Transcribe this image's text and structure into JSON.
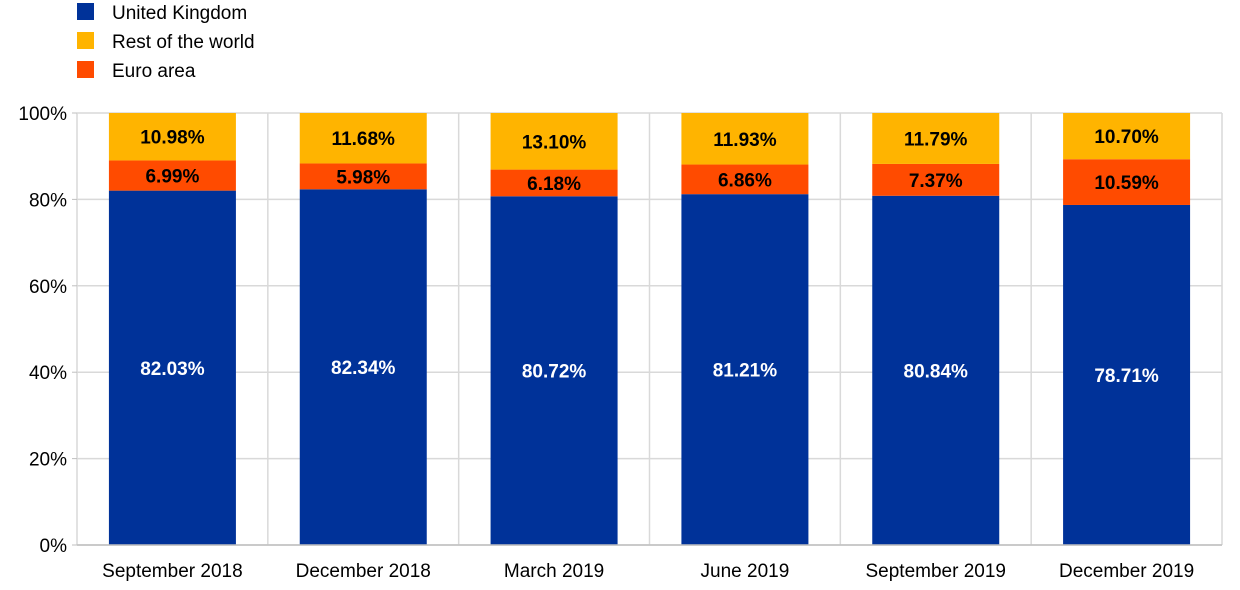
{
  "chart_data": {
    "type": "bar",
    "stacked": true,
    "title": "",
    "xlabel": "",
    "ylabel": "",
    "ylim": [
      0,
      100
    ],
    "yticks": [
      "0%",
      "20%",
      "40%",
      "60%",
      "80%",
      "100%"
    ],
    "grid": true,
    "legend_position": "top-left",
    "categories": [
      "September 2018",
      "December 2018",
      "March 2019",
      "June 2019",
      "September 2019",
      "December 2019"
    ],
    "series": [
      {
        "name": "United Kingdom",
        "color": "#003299",
        "label_color": "#ffffff",
        "values": [
          82.03,
          82.34,
          80.72,
          81.21,
          80.84,
          78.71
        ],
        "labels": [
          "82.03%",
          "82.34%",
          "80.72%",
          "81.21%",
          "80.84%",
          "78.71%"
        ]
      },
      {
        "name": "Euro area",
        "color": "#ff4b00",
        "label_color": "#000000",
        "values": [
          6.99,
          5.98,
          6.18,
          6.86,
          7.37,
          10.59
        ],
        "labels": [
          "6.99%",
          "5.98%",
          "6.18%",
          "6.86%",
          "7.37%",
          "10.59%"
        ]
      },
      {
        "name": "Rest of the world",
        "color": "#ffb400",
        "label_color": "#000000",
        "values": [
          10.98,
          11.68,
          13.1,
          11.93,
          11.79,
          10.7
        ],
        "labels": [
          "10.98%",
          "11.68%",
          "13.10%",
          "11.93%",
          "11.79%",
          "10.70%"
        ]
      }
    ],
    "legend": [
      {
        "name": "United Kingdom",
        "color": "#003299"
      },
      {
        "name": "Rest of the world",
        "color": "#ffb400"
      },
      {
        "name": "Euro area",
        "color": "#ff4b00"
      }
    ]
  }
}
